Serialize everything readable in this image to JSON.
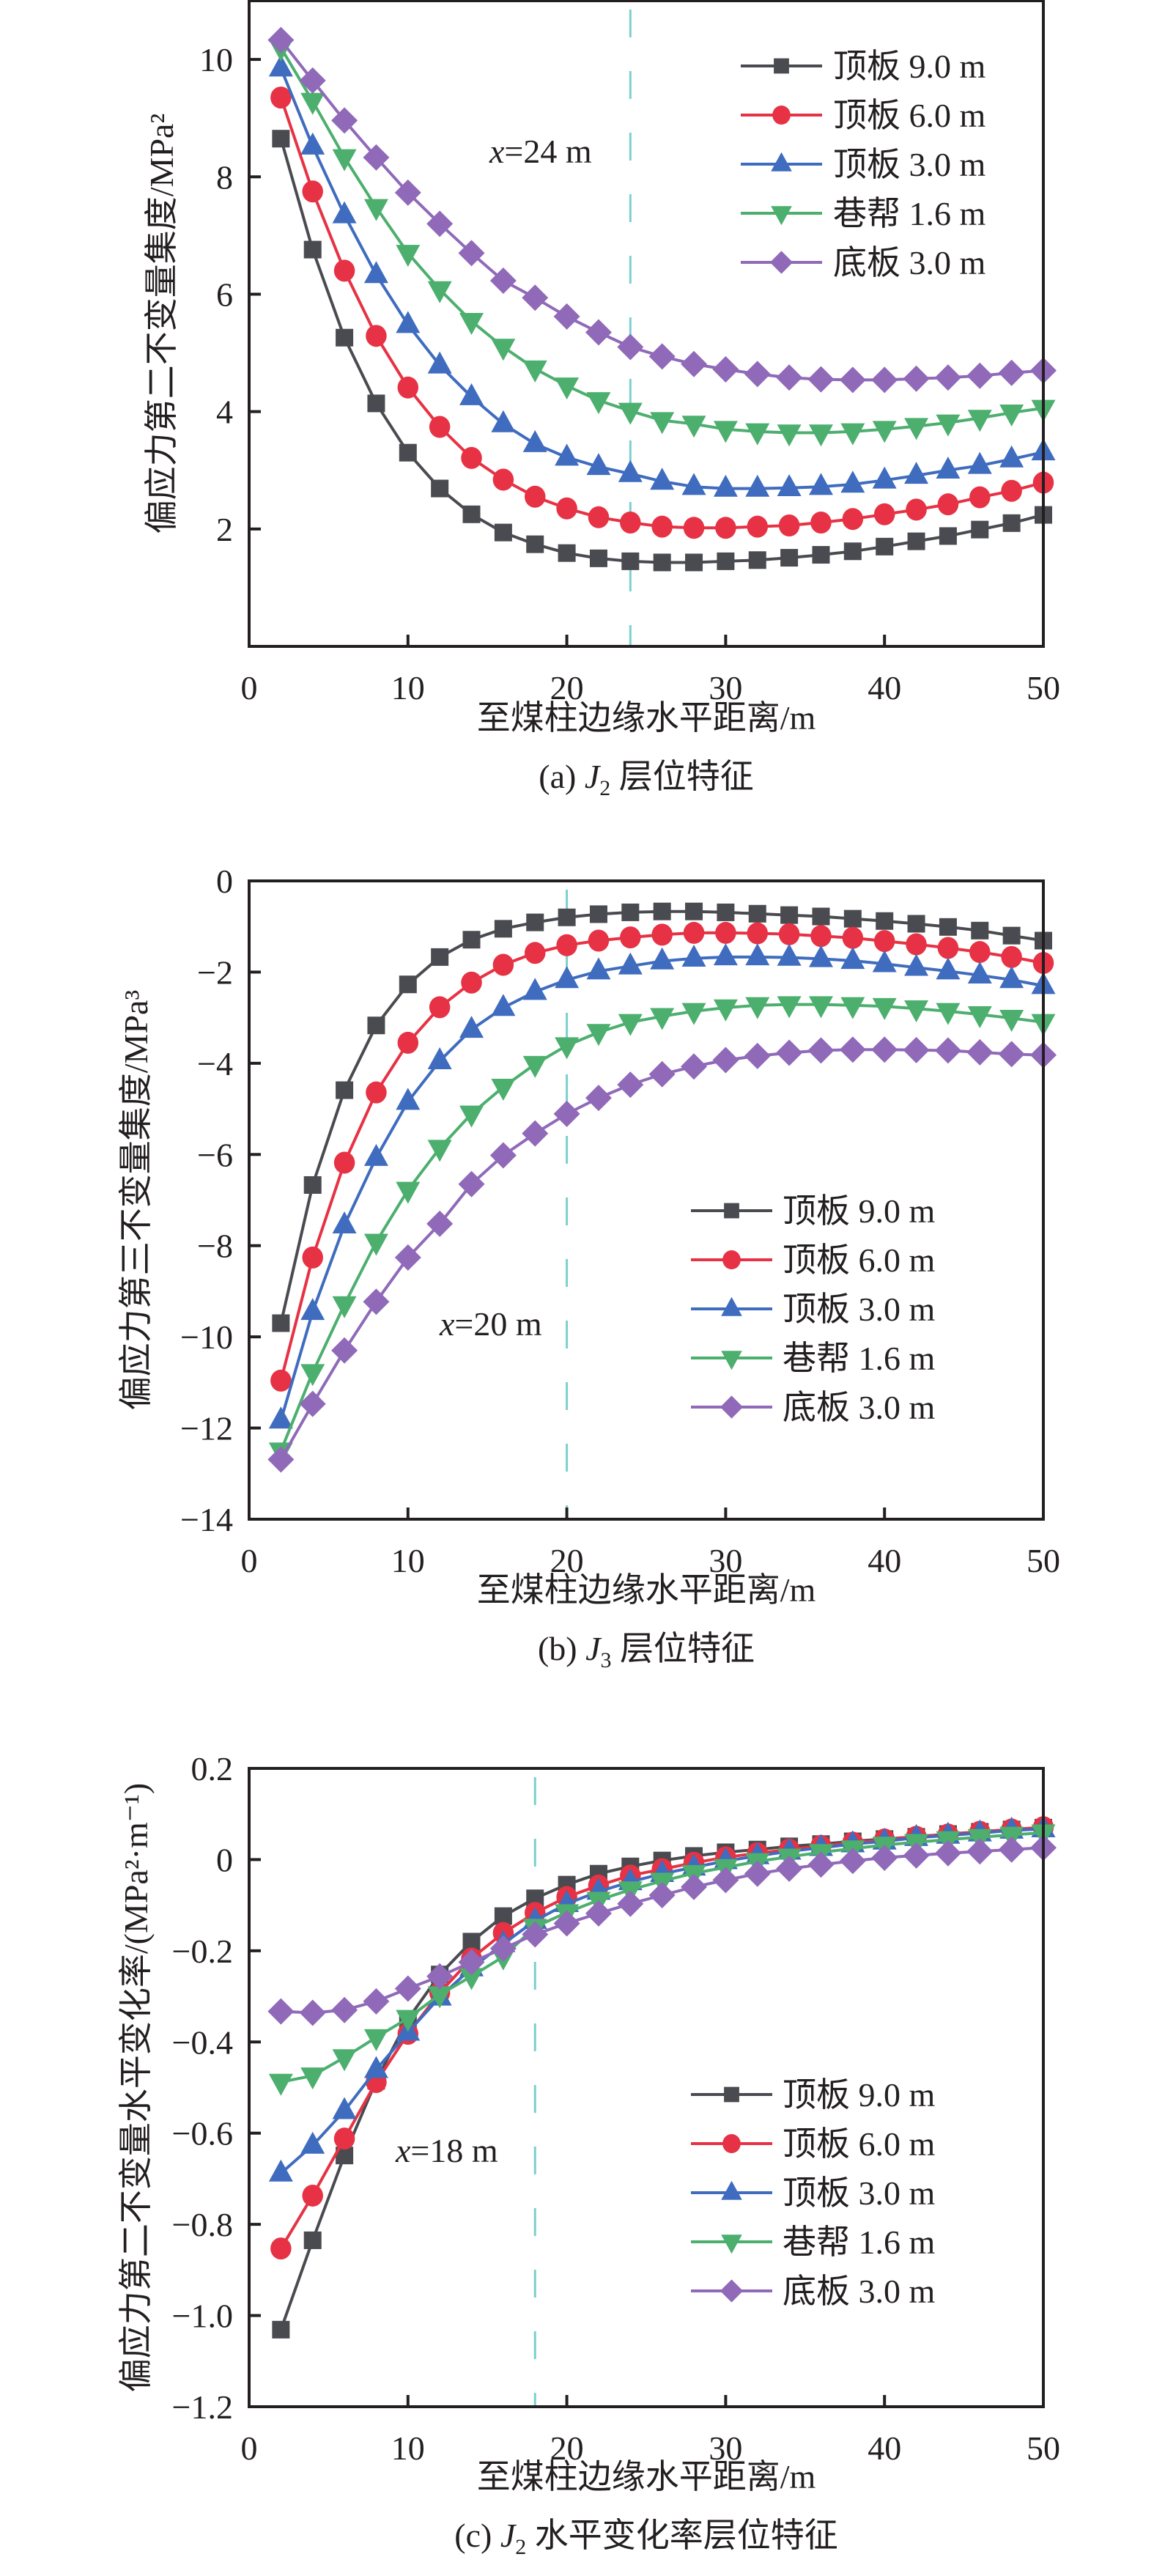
{
  "figure": {
    "series_styles": [
      {
        "name": "顶板 9.0 m",
        "color": "#4a4b50",
        "marker": "square"
      },
      {
        "name": "顶板 6.0 m",
        "color": "#e63244",
        "marker": "circle"
      },
      {
        "name": "顶板 3.0 m",
        "color": "#3f6cbf",
        "marker": "triangle-up"
      },
      {
        "name": "巷帮 1.6 m",
        "color": "#4caf6e",
        "marker": "triangle-down"
      },
      {
        "name": "底板 3.0 m",
        "color": "#9069b9",
        "marker": "diamond"
      }
    ],
    "reference_line_color": "#7ccfcf"
  },
  "chart_data": [
    {
      "id": "a",
      "type": "line",
      "title": "",
      "caption": {
        "prefix": "(a) ",
        "var": "J",
        "sub": "2",
        "suffix": " 层位特征"
      },
      "xlabel": "至煤柱边缘水平距离/m",
      "ylabel": "偏应力第二不变量集度/MPa²",
      "xlim": [
        0,
        50
      ],
      "ylim": [
        0,
        11
      ],
      "xticks": [
        0,
        10,
        20,
        30,
        40,
        50
      ],
      "yticks": [
        2,
        4,
        6,
        8,
        10
      ],
      "x_tick_labels": [
        "0",
        "10",
        "20",
        "30",
        "40",
        "50"
      ],
      "y_tick_labels": [
        "2",
        "4",
        "6",
        "8",
        "10"
      ],
      "y_zero_label": "0",
      "grid": false,
      "legend_position": "top-right",
      "reference_line": {
        "x": 24,
        "label_prefix": "x",
        "label_suffix": "=24 m"
      },
      "x": [
        2,
        4,
        6,
        8,
        10,
        12,
        14,
        16,
        18,
        20,
        22,
        24,
        26,
        28,
        30,
        32,
        34,
        36,
        38,
        40,
        42,
        44,
        46,
        48,
        50
      ],
      "series": [
        {
          "name": "顶板 9.0 m",
          "values": [
            8.65,
            6.76,
            5.26,
            4.14,
            3.3,
            2.69,
            2.25,
            1.94,
            1.74,
            1.59,
            1.5,
            1.45,
            1.43,
            1.43,
            1.45,
            1.47,
            1.51,
            1.56,
            1.62,
            1.7,
            1.79,
            1.88,
            1.99,
            2.1,
            2.24
          ]
        },
        {
          "name": "顶板 6.0 m",
          "values": [
            9.35,
            7.75,
            6.4,
            5.29,
            4.41,
            3.74,
            3.21,
            2.84,
            2.55,
            2.35,
            2.2,
            2.11,
            2.04,
            2.02,
            2.02,
            2.04,
            2.06,
            2.11,
            2.17,
            2.25,
            2.33,
            2.42,
            2.54,
            2.65,
            2.79
          ]
        },
        {
          "name": "顶板 3.0 m",
          "values": [
            9.85,
            8.52,
            7.35,
            6.33,
            5.48,
            4.79,
            4.25,
            3.79,
            3.45,
            3.22,
            3.06,
            2.94,
            2.81,
            2.72,
            2.69,
            2.69,
            2.7,
            2.72,
            2.76,
            2.83,
            2.91,
            3.0,
            3.08,
            3.19,
            3.31
          ]
        },
        {
          "name": "巷帮 1.6 m",
          "values": [
            10.2,
            9.29,
            8.33,
            7.48,
            6.7,
            6.08,
            5.54,
            5.1,
            4.73,
            4.44,
            4.19,
            4.01,
            3.85,
            3.79,
            3.7,
            3.66,
            3.64,
            3.64,
            3.66,
            3.7,
            3.75,
            3.81,
            3.89,
            3.98,
            4.06
          ]
        },
        {
          "name": "底板 3.0 m",
          "values": [
            10.33,
            9.64,
            8.96,
            8.33,
            7.73,
            7.2,
            6.7,
            6.23,
            5.94,
            5.62,
            5.35,
            5.1,
            4.94,
            4.81,
            4.72,
            4.64,
            4.58,
            4.55,
            4.54,
            4.54,
            4.56,
            4.58,
            4.61,
            4.66,
            4.7
          ]
        }
      ]
    },
    {
      "id": "b",
      "type": "line",
      "title": "",
      "caption": {
        "prefix": "(b) ",
        "var": "J",
        "sub": "3",
        "suffix": " 层位特征"
      },
      "xlabel": "至煤柱边缘水平距离/m",
      "ylabel": "偏应力第三不变量集度/MPa³",
      "xlim": [
        0,
        50
      ],
      "ylim": [
        -14,
        0
      ],
      "xticks": [
        0,
        10,
        20,
        30,
        40,
        50
      ],
      "yticks": [
        -14,
        -12,
        -10,
        -8,
        -6,
        -4,
        -2,
        0
      ],
      "x_tick_labels": [
        "0",
        "10",
        "20",
        "30",
        "40",
        "50"
      ],
      "y_tick_labels": [
        "−14",
        "−12",
        "−10",
        "−8",
        "−6",
        "−4",
        "−2",
        "0"
      ],
      "grid": false,
      "legend_position": "center-right",
      "reference_line": {
        "x": 20,
        "label_prefix": "x",
        "label_suffix": "=20 m"
      },
      "x": [
        2,
        4,
        6,
        8,
        10,
        12,
        14,
        16,
        18,
        20,
        22,
        24,
        26,
        28,
        30,
        32,
        34,
        36,
        38,
        40,
        42,
        44,
        46,
        48,
        50
      ],
      "series": [
        {
          "name": "顶板 9.0 m",
          "values": [
            -9.7,
            -6.67,
            -4.59,
            -3.17,
            -2.27,
            -1.67,
            -1.29,
            -1.05,
            -0.91,
            -0.8,
            -0.73,
            -0.69,
            -0.67,
            -0.67,
            -0.69,
            -0.72,
            -0.75,
            -0.78,
            -0.83,
            -0.88,
            -0.94,
            -1.01,
            -1.09,
            -1.2,
            -1.31
          ]
        },
        {
          "name": "顶板 6.0 m",
          "values": [
            -10.96,
            -8.26,
            -6.18,
            -4.64,
            -3.55,
            -2.77,
            -2.23,
            -1.84,
            -1.58,
            -1.41,
            -1.31,
            -1.24,
            -1.18,
            -1.14,
            -1.14,
            -1.15,
            -1.17,
            -1.21,
            -1.25,
            -1.32,
            -1.39,
            -1.47,
            -1.56,
            -1.67,
            -1.8
          ]
        },
        {
          "name": "顶板 3.0 m",
          "values": [
            -11.83,
            -9.45,
            -7.55,
            -6.07,
            -4.84,
            -3.95,
            -3.26,
            -2.78,
            -2.43,
            -2.17,
            -1.98,
            -1.87,
            -1.76,
            -1.7,
            -1.67,
            -1.67,
            -1.68,
            -1.71,
            -1.75,
            -1.82,
            -1.9,
            -1.98,
            -2.07,
            -2.17,
            -2.3
          ]
        },
        {
          "name": "巷帮 1.6 m",
          "values": [
            -12.5,
            -10.78,
            -9.29,
            -7.92,
            -6.78,
            -5.86,
            -5.11,
            -4.52,
            -4.02,
            -3.61,
            -3.32,
            -3.1,
            -2.97,
            -2.86,
            -2.78,
            -2.73,
            -2.71,
            -2.71,
            -2.73,
            -2.75,
            -2.8,
            -2.86,
            -2.93,
            -3.01,
            -3.1
          ]
        },
        {
          "name": "底板 3.0 m",
          "values": [
            -12.69,
            -11.47,
            -10.3,
            -9.23,
            -8.26,
            -7.52,
            -6.65,
            -6.02,
            -5.54,
            -5.11,
            -4.76,
            -4.47,
            -4.24,
            -4.07,
            -3.93,
            -3.84,
            -3.77,
            -3.72,
            -3.7,
            -3.7,
            -3.71,
            -3.72,
            -3.76,
            -3.8,
            -3.82
          ]
        }
      ]
    },
    {
      "id": "c",
      "type": "line",
      "title": "",
      "caption": {
        "prefix": "(c) ",
        "var": "J",
        "sub": "2",
        "suffix": " 水平变化率层位特征"
      },
      "xlabel": "至煤柱边缘水平距离/m",
      "ylabel": "偏应力第二不变量水平变化率/(MPa²·m⁻¹)",
      "xlim": [
        0,
        50
      ],
      "ylim": [
        -1.2,
        0.2
      ],
      "xticks": [
        0,
        10,
        20,
        30,
        40,
        50
      ],
      "yticks": [
        -1.2,
        -1.0,
        -0.8,
        -0.6,
        -0.4,
        -0.2,
        0,
        0.2
      ],
      "x_tick_labels": [
        "0",
        "10",
        "20",
        "30",
        "40",
        "50"
      ],
      "y_tick_labels": [
        "−1.2",
        "−1.0",
        "−0.8",
        "−0.6",
        "−0.4",
        "−0.2",
        "0",
        "0.2"
      ],
      "grid": false,
      "legend_position": "center-right",
      "reference_line": {
        "x": 18,
        "label_prefix": "x",
        "label_suffix": "=18 m"
      },
      "x": [
        2,
        4,
        6,
        8,
        10,
        12,
        14,
        16,
        18,
        20,
        22,
        24,
        26,
        28,
        30,
        32,
        34,
        36,
        38,
        40,
        42,
        44,
        46,
        48,
        50
      ],
      "series": [
        {
          "name": "顶板 9.0 m",
          "values": [
            -1.031,
            -0.835,
            -0.649,
            -0.485,
            -0.35,
            -0.252,
            -0.18,
            -0.124,
            -0.085,
            -0.055,
            -0.031,
            -0.015,
            -0.002,
            0.008,
            0.016,
            0.022,
            0.029,
            0.034,
            0.04,
            0.045,
            0.05,
            0.056,
            0.061,
            0.066,
            0.07
          ]
        },
        {
          "name": "顶板 6.0 m",
          "values": [
            -0.853,
            -0.737,
            -0.612,
            -0.488,
            -0.382,
            -0.292,
            -0.217,
            -0.161,
            -0.117,
            -0.082,
            -0.057,
            -0.035,
            -0.021,
            -0.007,
            0.005,
            0.014,
            0.022,
            0.03,
            0.037,
            0.044,
            0.05,
            0.055,
            0.061,
            0.066,
            0.071
          ]
        },
        {
          "name": "顶板 3.0 m",
          "values": [
            -0.688,
            -0.627,
            -0.551,
            -0.461,
            -0.379,
            -0.302,
            -0.238,
            -0.185,
            -0.134,
            -0.097,
            -0.07,
            -0.049,
            -0.031,
            -0.017,
            -0.003,
            0.008,
            0.018,
            0.026,
            0.034,
            0.04,
            0.048,
            0.053,
            0.058,
            0.064,
            0.067
          ]
        },
        {
          "name": "巷帮 1.6 m",
          "values": [
            -0.488,
            -0.474,
            -0.434,
            -0.39,
            -0.348,
            -0.296,
            -0.256,
            -0.213,
            -0.148,
            -0.116,
            -0.089,
            -0.066,
            -0.047,
            -0.03,
            -0.017,
            -0.004,
            0.006,
            0.016,
            0.024,
            0.032,
            0.038,
            0.044,
            0.049,
            0.054,
            0.059
          ]
        },
        {
          "name": "底板 3.0 m",
          "values": [
            -0.333,
            -0.336,
            -0.33,
            -0.311,
            -0.283,
            -0.256,
            -0.225,
            -0.195,
            -0.164,
            -0.14,
            -0.118,
            -0.097,
            -0.078,
            -0.06,
            -0.045,
            -0.031,
            -0.02,
            -0.011,
            -0.003,
            0.004,
            0.009,
            0.014,
            0.018,
            0.022,
            0.026
          ]
        }
      ]
    }
  ]
}
